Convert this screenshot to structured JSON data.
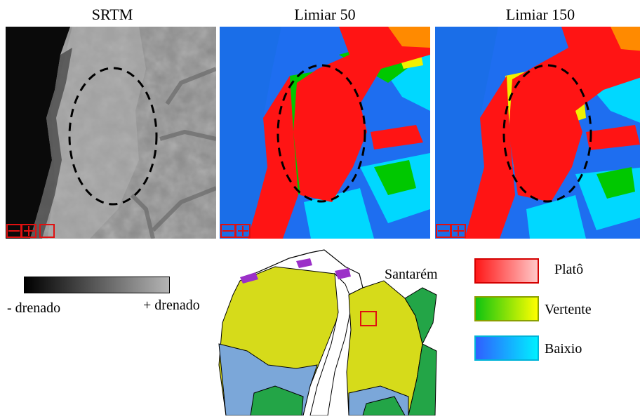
{
  "panels": [
    {
      "title": "SRTM",
      "kind": "gray"
    },
    {
      "title": "Limiar 50",
      "kind": "class50"
    },
    {
      "title": "Limiar 150",
      "kind": "class150"
    }
  ],
  "gray_legend": {
    "low_label": "- drenado",
    "high_label": "+ drenado",
    "from_color": "#000000",
    "to_color": "#b4b4b4"
  },
  "map": {
    "place_label": "Santarém",
    "colors": {
      "plateau": "#d6db1a",
      "lowland": "#7ba7d9",
      "slope_forest": "#23a547",
      "urban": "#9b30c8",
      "site_box": "#e01010"
    }
  },
  "class_legend": [
    {
      "label": "Platô",
      "from": "#ff1818",
      "to": "#ffc8c8",
      "border": "#d40000"
    },
    {
      "label": "Vertente",
      "from": "#10c410",
      "to": "#ffff00",
      "border": "#8aa000"
    },
    {
      "label": "Baixio",
      "from": "#2f5fff",
      "to": "#00f0ff",
      "border": "#00b4d8"
    }
  ]
}
